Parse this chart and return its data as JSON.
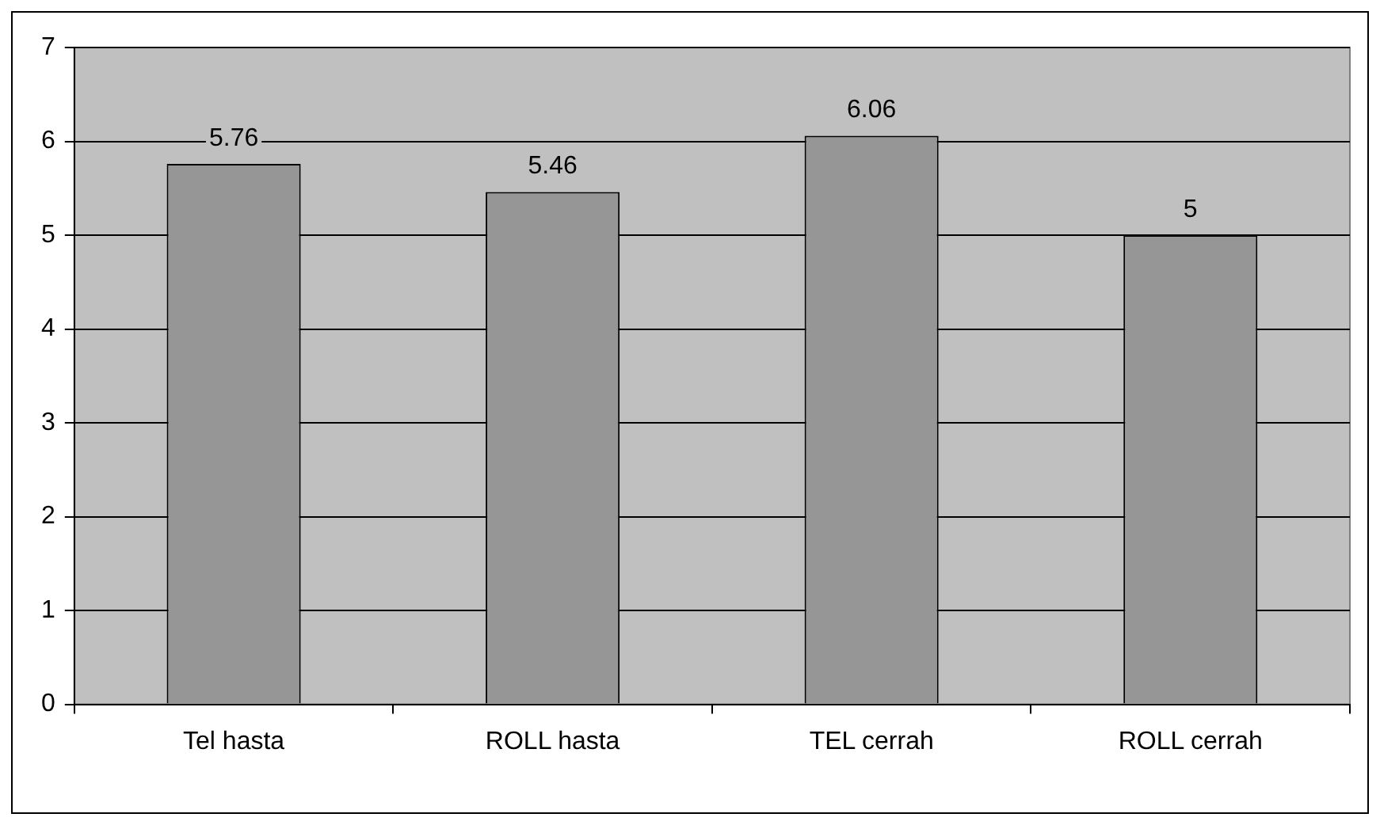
{
  "chart_data": {
    "type": "bar",
    "categories": [
      "Tel hasta",
      "ROLL hasta",
      "TEL cerrah",
      "ROLL cerrah"
    ],
    "values": [
      5.76,
      5.46,
      6.06,
      5
    ],
    "color": "#969696",
    "ylim": [
      0,
      7
    ],
    "yticks": [
      0,
      1,
      2,
      3,
      4,
      5,
      6,
      7
    ],
    "grid": "y",
    "legend": false,
    "data_labels": true
  }
}
